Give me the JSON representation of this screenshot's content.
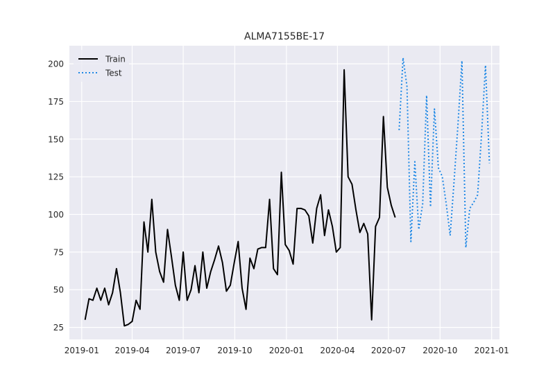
{
  "chart_data": {
    "type": "line",
    "title": "ALMA7155BE-17",
    "xlabel": "",
    "ylabel": "",
    "x_axis_type": "date",
    "xlim": [
      "2018-12-10",
      "2021-01-15"
    ],
    "ylim": [
      17,
      212
    ],
    "x_ticks": [
      "2019-01-01",
      "2019-04-01",
      "2019-07-01",
      "2019-10-01",
      "2020-01-01",
      "2020-04-01",
      "2020-07-01",
      "2020-10-01",
      "2021-01-01"
    ],
    "x_tick_labels": [
      "2019-01",
      "2019-04",
      "2019-07",
      "2019-10",
      "2020-01",
      "2020-04",
      "2020-07",
      "2020-10",
      "2021-01"
    ],
    "y_ticks": [
      25,
      50,
      75,
      100,
      125,
      150,
      175,
      200
    ],
    "y_tick_labels": [
      "25",
      "50",
      "75",
      "100",
      "125",
      "150",
      "175",
      "200"
    ],
    "grid": true,
    "legend": "top-left",
    "background": "#eaeaf2",
    "series": [
      {
        "name": "Train",
        "color": "#000000",
        "style": "solid",
        "points": [
          [
            "2019-01-07",
            30
          ],
          [
            "2019-01-14",
            44
          ],
          [
            "2019-01-21",
            43
          ],
          [
            "2019-01-28",
            51
          ],
          [
            "2019-02-04",
            43
          ],
          [
            "2019-02-11",
            51
          ],
          [
            "2019-02-18",
            40
          ],
          [
            "2019-02-25",
            48
          ],
          [
            "2019-03-04",
            64
          ],
          [
            "2019-03-11",
            48
          ],
          [
            "2019-03-18",
            26
          ],
          [
            "2019-03-25",
            27
          ],
          [
            "2019-04-01",
            29
          ],
          [
            "2019-04-08",
            43
          ],
          [
            "2019-04-15",
            37
          ],
          [
            "2019-04-22",
            95
          ],
          [
            "2019-04-29",
            75
          ],
          [
            "2019-05-06",
            110
          ],
          [
            "2019-05-13",
            75
          ],
          [
            "2019-05-20",
            62
          ],
          [
            "2019-05-27",
            55
          ],
          [
            "2019-06-03",
            90
          ],
          [
            "2019-06-10",
            72
          ],
          [
            "2019-06-17",
            53
          ],
          [
            "2019-06-24",
            43
          ],
          [
            "2019-07-01",
            75
          ],
          [
            "2019-07-08",
            43
          ],
          [
            "2019-07-15",
            50
          ],
          [
            "2019-07-22",
            66
          ],
          [
            "2019-07-29",
            48
          ],
          [
            "2019-08-05",
            75
          ],
          [
            "2019-08-12",
            51
          ],
          [
            "2019-08-19",
            62
          ],
          [
            "2019-08-26",
            70
          ],
          [
            "2019-09-02",
            79
          ],
          [
            "2019-09-09",
            68
          ],
          [
            "2019-09-16",
            49
          ],
          [
            "2019-09-23",
            53
          ],
          [
            "2019-09-30",
            68
          ],
          [
            "2019-10-07",
            82
          ],
          [
            "2019-10-14",
            51
          ],
          [
            "2019-10-21",
            37
          ],
          [
            "2019-10-28",
            71
          ],
          [
            "2019-11-04",
            64
          ],
          [
            "2019-11-11",
            77
          ],
          [
            "2019-11-18",
            78
          ],
          [
            "2019-11-25",
            78
          ],
          [
            "2019-12-02",
            110
          ],
          [
            "2019-12-09",
            64
          ],
          [
            "2019-12-16",
            60
          ],
          [
            "2019-12-23",
            128
          ],
          [
            "2019-12-30",
            80
          ],
          [
            "2020-01-06",
            76
          ],
          [
            "2020-01-13",
            67
          ],
          [
            "2020-01-20",
            104
          ],
          [
            "2020-01-27",
            104
          ],
          [
            "2020-02-03",
            103
          ],
          [
            "2020-02-10",
            99
          ],
          [
            "2020-02-17",
            81
          ],
          [
            "2020-02-24",
            104
          ],
          [
            "2020-03-02",
            113
          ],
          [
            "2020-03-09",
            86
          ],
          [
            "2020-03-16",
            103
          ],
          [
            "2020-03-23",
            92
          ],
          [
            "2020-03-30",
            75
          ],
          [
            "2020-04-06",
            78
          ],
          [
            "2020-04-13",
            196
          ],
          [
            "2020-04-20",
            125
          ],
          [
            "2020-04-27",
            120
          ],
          [
            "2020-05-04",
            103
          ],
          [
            "2020-05-11",
            88
          ],
          [
            "2020-05-18",
            94
          ],
          [
            "2020-05-25",
            87
          ],
          [
            "2020-06-01",
            30
          ],
          [
            "2020-06-08",
            92
          ],
          [
            "2020-06-15",
            98
          ],
          [
            "2020-06-22",
            165
          ],
          [
            "2020-06-29",
            118
          ],
          [
            "2020-07-06",
            106
          ],
          [
            "2020-07-13",
            98
          ]
        ]
      },
      {
        "name": "Test",
        "color": "#1e88e5",
        "style": "dotted",
        "points": [
          [
            "2020-07-20",
            156
          ],
          [
            "2020-07-27",
            204
          ],
          [
            "2020-08-03",
            185
          ],
          [
            "2020-08-10",
            82
          ],
          [
            "2020-08-17",
            135
          ],
          [
            "2020-08-24",
            90
          ],
          [
            "2020-08-31",
            107
          ],
          [
            "2020-09-07",
            179
          ],
          [
            "2020-09-14",
            105
          ],
          [
            "2020-09-21",
            170
          ],
          [
            "2020-09-28",
            131
          ],
          [
            "2020-10-05",
            125
          ],
          [
            "2020-10-12",
            107
          ],
          [
            "2020-10-19",
            86
          ],
          [
            "2020-10-26",
            122
          ],
          [
            "2020-11-02",
            160
          ],
          [
            "2020-11-09",
            202
          ],
          [
            "2020-11-16",
            78
          ],
          [
            "2020-11-23",
            104
          ],
          [
            "2020-11-30",
            108
          ],
          [
            "2020-12-07",
            113
          ],
          [
            "2020-12-14",
            153
          ],
          [
            "2020-12-21",
            199
          ],
          [
            "2020-12-28",
            134
          ]
        ]
      }
    ]
  }
}
